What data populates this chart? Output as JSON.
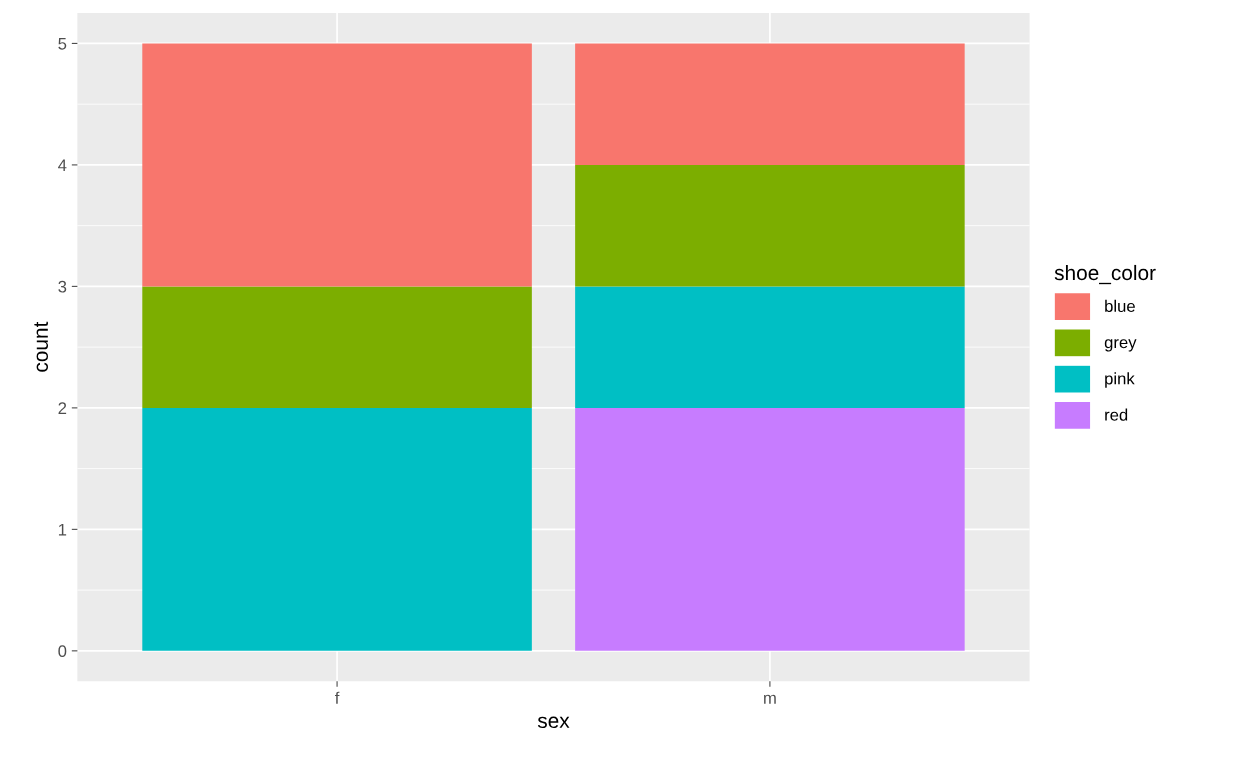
{
  "chart_data": {
    "type": "bar",
    "stacked": true,
    "xlabel": "sex",
    "ylabel": "count",
    "legend_title": "shoe_color",
    "legend": "right",
    "grid": true,
    "categories": [
      "f",
      "m"
    ],
    "ylim": [
      -0.25,
      5.25
    ],
    "yticks": [
      0,
      1,
      2,
      3,
      4,
      5
    ],
    "series": [
      {
        "name": "red",
        "color": "#c77cff",
        "values": [
          0,
          2
        ]
      },
      {
        "name": "pink",
        "color": "#00bfc4",
        "values": [
          2,
          1
        ]
      },
      {
        "name": "grey",
        "color": "#7cae00",
        "values": [
          1,
          1
        ]
      },
      {
        "name": "blue",
        "color": "#f8766d",
        "values": [
          2,
          1
        ]
      }
    ]
  }
}
